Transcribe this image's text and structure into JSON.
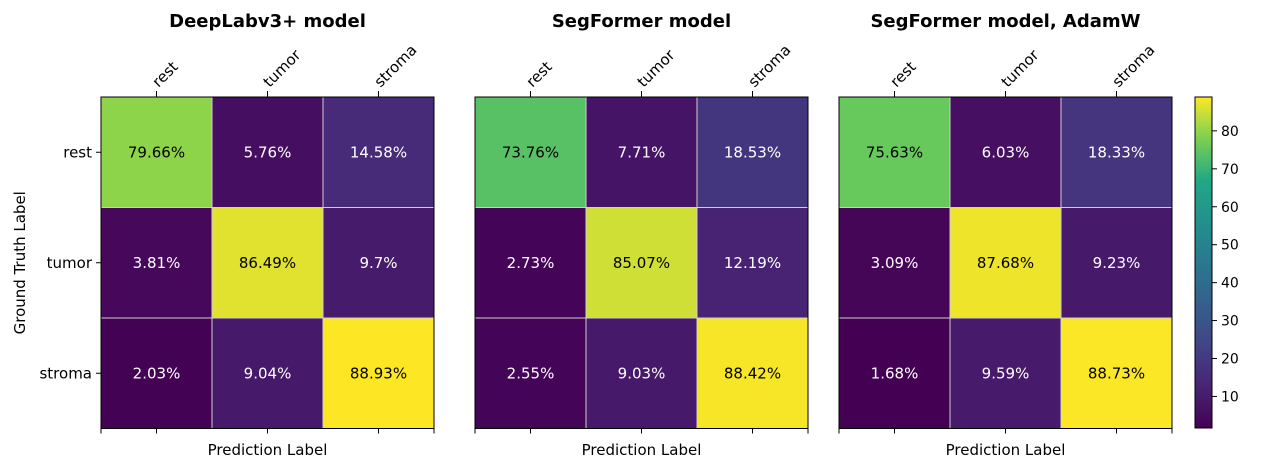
{
  "chart_data": [
    {
      "type": "heatmap",
      "title": "DeepLabv3+ model",
      "xlabel": "Prediction Label",
      "ylabel": "Ground Truth Label",
      "x_categories": [
        "rest",
        "tumor",
        "stroma"
      ],
      "y_categories": [
        "rest",
        "tumor",
        "stroma"
      ],
      "values": [
        [
          79.66,
          5.76,
          14.58
        ],
        [
          3.81,
          86.49,
          9.7
        ],
        [
          2.03,
          9.04,
          88.93
        ]
      ],
      "labels": [
        [
          "79.66%",
          "5.76%",
          "14.58%"
        ],
        [
          "3.81%",
          "86.49%",
          "9.7%"
        ],
        [
          "2.03%",
          "9.04%",
          "88.93%"
        ]
      ]
    },
    {
      "type": "heatmap",
      "title": "SegFormer model",
      "xlabel": "Prediction Label",
      "ylabel": "",
      "x_categories": [
        "rest",
        "tumor",
        "stroma"
      ],
      "y_categories": [],
      "values": [
        [
          73.76,
          7.71,
          18.53
        ],
        [
          2.73,
          85.07,
          12.19
        ],
        [
          2.55,
          9.03,
          88.42
        ]
      ],
      "labels": [
        [
          "73.76%",
          "7.71%",
          "18.53%"
        ],
        [
          "2.73%",
          "85.07%",
          "12.19%"
        ],
        [
          "2.55%",
          "9.03%",
          "88.42%"
        ]
      ]
    },
    {
      "type": "heatmap",
      "title": "SegFormer model, AdamW",
      "xlabel": "Prediction Label",
      "ylabel": "",
      "x_categories": [
        "rest",
        "tumor",
        "stroma"
      ],
      "y_categories": [],
      "values": [
        [
          75.63,
          6.03,
          18.33
        ],
        [
          3.09,
          87.68,
          9.23
        ],
        [
          1.68,
          9.59,
          88.73
        ]
      ],
      "labels": [
        [
          "75.63%",
          "6.03%",
          "18.33%"
        ],
        [
          "3.09%",
          "87.68%",
          "9.23%"
        ],
        [
          "1.68%",
          "9.59%",
          "88.73%"
        ]
      ]
    }
  ],
  "colorbar": {
    "colormap": "viridis",
    "range": [
      1.68,
      88.93
    ],
    "ticks": [
      "10",
      "20",
      "30",
      "40",
      "50",
      "60",
      "70",
      "80"
    ]
  }
}
